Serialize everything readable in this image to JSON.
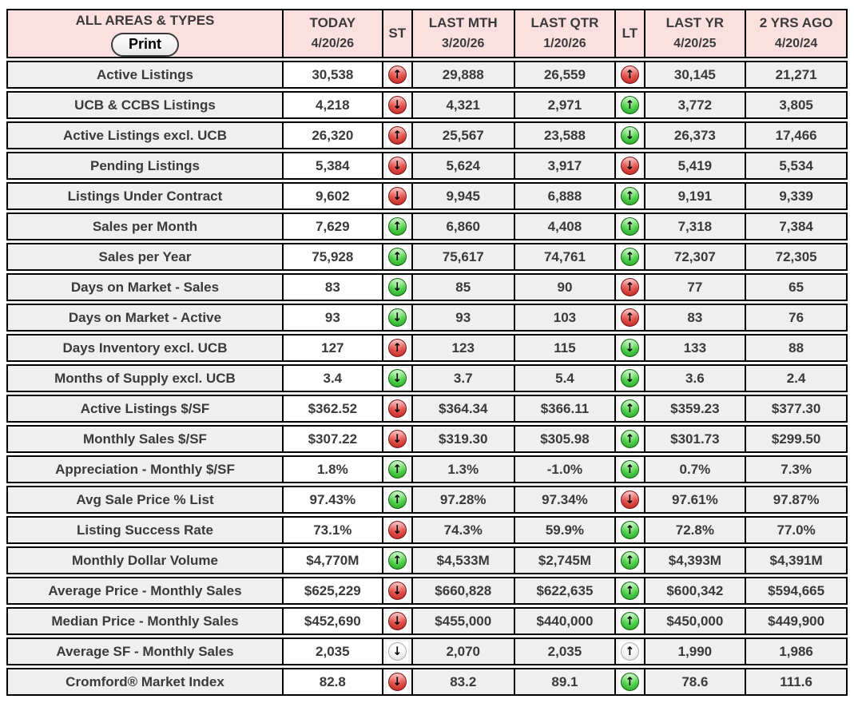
{
  "header": {
    "area_title": "ALL AREAS & TYPES",
    "print_label": "Print",
    "columns": [
      {
        "label": "TODAY",
        "date": "4/20/26"
      },
      {
        "label": "ST",
        "date": ""
      },
      {
        "label": "LAST MTH",
        "date": "3/20/26"
      },
      {
        "label": "LAST QTR",
        "date": "1/20/26"
      },
      {
        "label": "LT",
        "date": ""
      },
      {
        "label": "LAST YR",
        "date": "4/20/25"
      },
      {
        "label": "2 YRS AGO",
        "date": "4/20/24"
      }
    ]
  },
  "colors": {
    "header_pink": "#fce0e0",
    "cell_gray": "#efefef",
    "cell_white": "#ffffff",
    "border_black": "#000000",
    "text": "#3a3a3a",
    "indicator_red": "#c9302c",
    "indicator_green": "#3fbf3f",
    "indicator_neutral": "#f0f0f0"
  },
  "rows": [
    {
      "label": "Active Listings",
      "today": "30,538",
      "st": "red-up",
      "last_mth": "29,888",
      "last_qtr": "26,559",
      "lt": "red-up",
      "last_yr": "30,145",
      "two_yrs_ago": "21,271"
    },
    {
      "label": "UCB & CCBS Listings",
      "today": "4,218",
      "st": "red-down",
      "last_mth": "4,321",
      "last_qtr": "2,971",
      "lt": "green-up",
      "last_yr": "3,772",
      "two_yrs_ago": "3,805"
    },
    {
      "label": "Active Listings excl. UCB",
      "today": "26,320",
      "st": "red-up",
      "last_mth": "25,567",
      "last_qtr": "23,588",
      "lt": "green-down",
      "last_yr": "26,373",
      "two_yrs_ago": "17,466"
    },
    {
      "label": "Pending Listings",
      "today": "5,384",
      "st": "red-down",
      "last_mth": "5,624",
      "last_qtr": "3,917",
      "lt": "red-down",
      "last_yr": "5,419",
      "two_yrs_ago": "5,534"
    },
    {
      "label": "Listings Under Contract",
      "today": "9,602",
      "st": "red-down",
      "last_mth": "9,945",
      "last_qtr": "6,888",
      "lt": "green-up",
      "last_yr": "9,191",
      "two_yrs_ago": "9,339"
    },
    {
      "label": "Sales per Month",
      "today": "7,629",
      "st": "green-up",
      "last_mth": "6,860",
      "last_qtr": "4,408",
      "lt": "green-up",
      "last_yr": "7,318",
      "two_yrs_ago": "7,384"
    },
    {
      "label": "Sales per Year",
      "today": "75,928",
      "st": "green-up",
      "last_mth": "75,617",
      "last_qtr": "74,761",
      "lt": "green-up",
      "last_yr": "72,307",
      "two_yrs_ago": "72,305"
    },
    {
      "label": "Days on Market - Sales",
      "today": "83",
      "st": "green-down",
      "last_mth": "85",
      "last_qtr": "90",
      "lt": "red-up",
      "last_yr": "77",
      "two_yrs_ago": "65"
    },
    {
      "label": "Days on Market - Active",
      "today": "93",
      "st": "green-down",
      "last_mth": "93",
      "last_qtr": "103",
      "lt": "red-up",
      "last_yr": "83",
      "two_yrs_ago": "76"
    },
    {
      "label": "Days Inventory excl. UCB",
      "today": "127",
      "st": "red-up",
      "last_mth": "123",
      "last_qtr": "115",
      "lt": "green-down",
      "last_yr": "133",
      "two_yrs_ago": "88"
    },
    {
      "label": "Months of Supply excl. UCB",
      "today": "3.4",
      "st": "green-down",
      "last_mth": "3.7",
      "last_qtr": "5.4",
      "lt": "green-down",
      "last_yr": "3.6",
      "two_yrs_ago": "2.4"
    },
    {
      "label": "Active Listings $/SF",
      "today": "$362.52",
      "st": "red-down",
      "last_mth": "$364.34",
      "last_qtr": "$366.11",
      "lt": "green-up",
      "last_yr": "$359.23",
      "two_yrs_ago": "$377.30"
    },
    {
      "label": "Monthly Sales $/SF",
      "today": "$307.22",
      "st": "red-down",
      "last_mth": "$319.30",
      "last_qtr": "$305.98",
      "lt": "green-up",
      "last_yr": "$301.73",
      "two_yrs_ago": "$299.50"
    },
    {
      "label": "Appreciation - Monthly $/SF",
      "today": "1.8%",
      "st": "green-up",
      "last_mth": "1.3%",
      "last_qtr": "-1.0%",
      "lt": "green-up",
      "last_yr": "0.7%",
      "two_yrs_ago": "7.3%"
    },
    {
      "label": "Avg Sale Price % List",
      "today": "97.43%",
      "st": "green-up",
      "last_mth": "97.28%",
      "last_qtr": "97.34%",
      "lt": "red-down",
      "last_yr": "97.61%",
      "two_yrs_ago": "97.87%"
    },
    {
      "label": "Listing Success Rate",
      "today": "73.1%",
      "st": "red-down",
      "last_mth": "74.3%",
      "last_qtr": "59.9%",
      "lt": "green-up",
      "last_yr": "72.8%",
      "two_yrs_ago": "77.0%"
    },
    {
      "label": "Monthly Dollar Volume",
      "today": "$4,770M",
      "st": "green-up",
      "last_mth": "$4,533M",
      "last_qtr": "$2,745M",
      "lt": "green-up",
      "last_yr": "$4,393M",
      "two_yrs_ago": "$4,391M"
    },
    {
      "label": "Average Price - Monthly Sales",
      "today": "$625,229",
      "st": "red-down",
      "last_mth": "$660,828",
      "last_qtr": "$622,635",
      "lt": "green-up",
      "last_yr": "$600,342",
      "two_yrs_ago": "$594,665"
    },
    {
      "label": "Median Price - Monthly Sales",
      "today": "$452,690",
      "st": "red-down",
      "last_mth": "$455,000",
      "last_qtr": "$440,000",
      "lt": "green-up",
      "last_yr": "$450,000",
      "two_yrs_ago": "$449,900"
    },
    {
      "label": "Average SF - Monthly Sales",
      "today": "2,035",
      "st": "neutral-down",
      "last_mth": "2,070",
      "last_qtr": "2,035",
      "lt": "neutral-up",
      "last_yr": "1,990",
      "two_yrs_ago": "1,986"
    },
    {
      "label": "Cromford® Market Index",
      "today": "82.8",
      "st": "red-down",
      "last_mth": "83.2",
      "last_qtr": "89.1",
      "lt": "green-up",
      "last_yr": "78.6",
      "two_yrs_ago": "111.6"
    }
  ]
}
